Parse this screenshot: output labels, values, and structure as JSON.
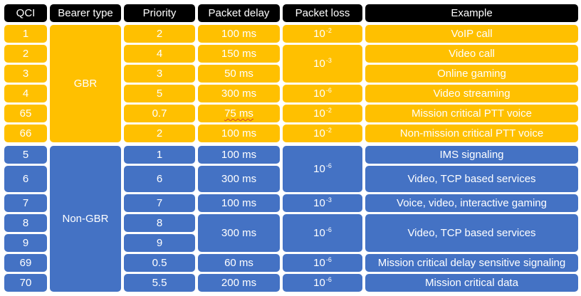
{
  "colors": {
    "header": "#000000",
    "gbr": "#FFC000",
    "non_gbr": "#4472C4",
    "text": "#ffffff"
  },
  "headers": [
    "QCI",
    "Bearer type",
    "Priority",
    "Packet delay",
    "Packet loss",
    "Example"
  ],
  "bearer_types": {
    "gbr": "GBR",
    "non_gbr": "Non-GBR"
  },
  "rows": [
    {
      "qci": "1",
      "priority": "2",
      "delay": "100 ms",
      "example": "VoIP call"
    },
    {
      "qci": "2",
      "priority": "4",
      "delay": "150 ms",
      "example": "Video call"
    },
    {
      "qci": "3",
      "priority": "3",
      "delay": "50 ms",
      "example": "Online gaming"
    },
    {
      "qci": "4",
      "priority": "5",
      "delay": "300 ms",
      "example": "Video streaming"
    },
    {
      "qci": "65",
      "priority": "0.7",
      "delay": "75 ms",
      "example": "Mission critical PTT voice"
    },
    {
      "qci": "66",
      "priority": "2",
      "delay": "100 ms",
      "example": "Non-mission critical PTT voice"
    },
    {
      "qci": "5",
      "priority": "1",
      "delay": "100 ms",
      "example": "IMS signaling"
    },
    {
      "qci": "6",
      "priority": "6",
      "delay": "300 ms",
      "example": "Video, TCP based services"
    },
    {
      "qci": "7",
      "priority": "7",
      "delay": "100 ms",
      "example": "Voice, video, interactive gaming"
    },
    {
      "qci": "8",
      "priority": "8",
      "delay": "",
      "example": ""
    },
    {
      "qci": "9",
      "priority": "9",
      "delay": "",
      "example": ""
    },
    {
      "qci": "69",
      "priority": "0.5",
      "delay": "60 ms",
      "example": "Mission critical delay sensitive signaling"
    },
    {
      "qci": "70",
      "priority": "5.5",
      "delay": "200 ms",
      "example": "Mission critical data"
    }
  ],
  "merged": {
    "delay_8_9": "300 ms",
    "example_8_9": "Video, TCP based services"
  },
  "packet_loss": [
    {
      "rows": [
        0
      ],
      "base": "10",
      "exp": "-2"
    },
    {
      "rows": [
        1,
        2
      ],
      "base": "10",
      "exp": "-3"
    },
    {
      "rows": [
        3
      ],
      "base": "10",
      "exp": "-6"
    },
    {
      "rows": [
        4
      ],
      "base": "10",
      "exp": "-2"
    },
    {
      "rows": [
        5
      ],
      "base": "10",
      "exp": "-2"
    },
    {
      "rows": [
        6,
        7
      ],
      "base": "10",
      "exp": "-6"
    },
    {
      "rows": [
        8
      ],
      "base": "10",
      "exp": "-3"
    },
    {
      "rows": [
        9,
        10
      ],
      "base": "10",
      "exp": "-6"
    },
    {
      "rows": [
        11
      ],
      "base": "10",
      "exp": "-6"
    },
    {
      "rows": [
        12
      ],
      "base": "10",
      "exp": "-6"
    }
  ]
}
